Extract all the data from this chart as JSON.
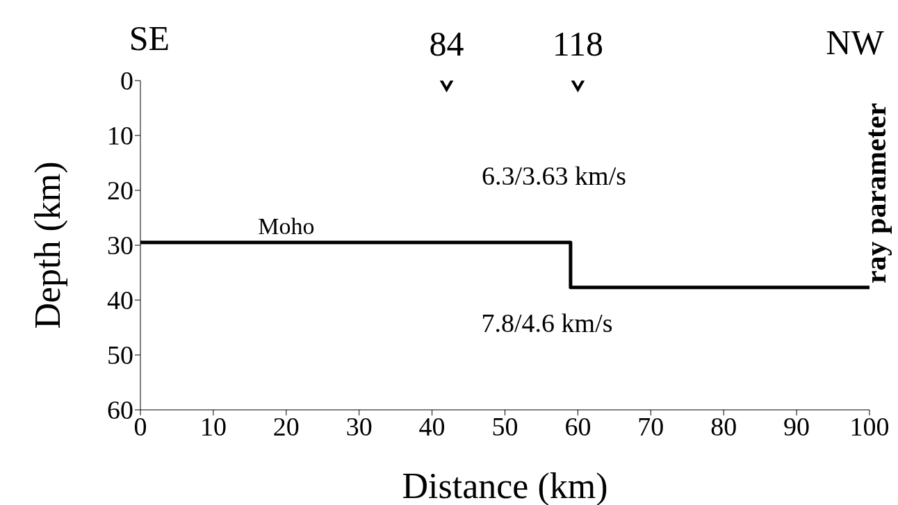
{
  "chart_data": {
    "type": "line",
    "xlabel": "Distance (km)",
    "ylabel": "Depth (km)",
    "xlim": [
      0,
      100
    ],
    "xticks": [
      0,
      10,
      20,
      30,
      40,
      50,
      60,
      70,
      80,
      90,
      100
    ],
    "ylim": [
      60,
      0
    ],
    "yticks": [
      0,
      10,
      20,
      30,
      40,
      50,
      60
    ],
    "series": [
      {
        "type": "step",
        "color": "#000000",
        "x": [
          0,
          59,
          100
        ],
        "values": [
          29.5,
          37.7,
          37.7
        ],
        "marker": "none"
      },
      {
        "type": "scatter",
        "color": "#000000",
        "x": [
          42,
          60
        ],
        "values": [
          0,
          0
        ],
        "marker": "triangle"
      }
    ],
    "annotations": [
      {
        "text": "84",
        "x": 42,
        "y": 0
      },
      {
        "text": "118",
        "x": 60,
        "y": 0
      },
      {
        "text": "Moho",
        "x": 20,
        "y": 29.5
      },
      "SE",
      "NW",
      "6.3/3.63 km/s",
      "7.8/4.6 km/s",
      "ray parameter"
    ]
  }
}
